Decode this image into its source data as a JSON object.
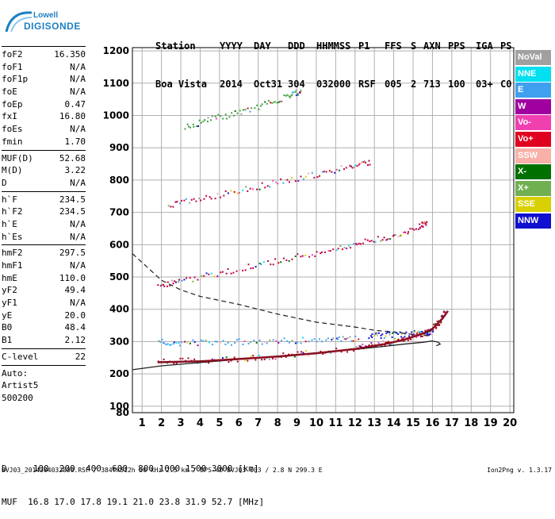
{
  "logo": {
    "brand": "Lowell",
    "product": "DIGISONDE"
  },
  "header": {
    "labels": [
      "Station",
      "YYYY",
      "DAY",
      "DDD",
      "HHMMSS",
      "P1",
      "FFS",
      "S",
      "AXN",
      "PPS",
      "IGA",
      "PS"
    ],
    "values": [
      "Boa Vista",
      "2014",
      "Oct31",
      "304",
      "032000",
      "RSF",
      "005",
      "2",
      "713",
      "100",
      "03+",
      "C0"
    ]
  },
  "params": {
    "group1": [
      {
        "label": "foF2",
        "value": "16.350"
      },
      {
        "label": "foF1",
        "value": "N/A"
      },
      {
        "label": "foF1p",
        "value": "N/A"
      },
      {
        "label": "foE",
        "value": "N/A"
      },
      {
        "label": "foEp",
        "value": "0.47"
      },
      {
        "label": "fxI",
        "value": "16.80"
      },
      {
        "label": "foEs",
        "value": "N/A"
      },
      {
        "label": "fmin",
        "value": "1.70"
      }
    ],
    "group2": [
      {
        "label": "MUF(D)",
        "value": "52.68"
      },
      {
        "label": "M(D)",
        "value": "3.22"
      },
      {
        "label": "D",
        "value": "N/A"
      }
    ],
    "group3": [
      {
        "label": "h`F",
        "value": "234.5"
      },
      {
        "label": "h`F2",
        "value": "234.5"
      },
      {
        "label": "h`E",
        "value": "N/A"
      },
      {
        "label": "h`Es",
        "value": "N/A"
      }
    ],
    "group4": [
      {
        "label": "hmF2",
        "value": "297.5"
      },
      {
        "label": "hmF1",
        "value": "N/A"
      },
      {
        "label": "hmE",
        "value": "110.0"
      },
      {
        "label": "yF2",
        "value": "49.4"
      },
      {
        "label": "yF1",
        "value": "N/A"
      },
      {
        "label": "yE",
        "value": "20.0"
      },
      {
        "label": "B0",
        "value": "48.4"
      },
      {
        "label": "B1",
        "value": "2.12"
      }
    ],
    "group5": [
      {
        "label": "C-level",
        "value": "22"
      }
    ],
    "scaling": [
      "Auto:",
      "Artist5",
      "500200"
    ]
  },
  "legend": [
    {
      "label": "NoVal",
      "color": "#a0a0a0"
    },
    {
      "label": "NNE",
      "color": "#00e0f0"
    },
    {
      "label": "E",
      "color": "#40a0f0"
    },
    {
      "label": "W",
      "color": "#a000a0"
    },
    {
      "label": "Vo-",
      "color": "#f040b0"
    },
    {
      "label": "Vo+",
      "color": "#e00020"
    },
    {
      "label": "SSW",
      "color": "#f8b0a8"
    },
    {
      "label": "X-",
      "color": "#007000"
    },
    {
      "label": "X+",
      "color": "#70b050"
    },
    {
      "label": "SSE",
      "color": "#d8d000"
    },
    {
      "label": "NNW",
      "color": "#1010d0"
    }
  ],
  "muf_table": {
    "d_row": "D     100  200  400  600  800 1000 1500 3000 [km]",
    "muf_row": "MUF  16.8 17.0 17.8 19.1 21.0 23.8 31.9 52.7 [MHz]"
  },
  "footer": {
    "left": "BVJ03_2014304032000.RSF / 384fx512h 50 kHz 2.5 km / DPS-4D BVJ03 003 / 2.8 N 299.3 E",
    "right": "Ion2Png v. 1.3.17"
  },
  "chart_data": {
    "type": "scatter",
    "xlim": [
      0.5,
      20.2
    ],
    "ylim": [
      80,
      1210
    ],
    "x_ticks": [
      1,
      2,
      3,
      4,
      5,
      6,
      7,
      8,
      9,
      10,
      11,
      12,
      13,
      14,
      15,
      16,
      17,
      18,
      19,
      20
    ],
    "y_ticks": [
      80,
      100,
      200,
      300,
      400,
      500,
      600,
      700,
      800,
      900,
      1000,
      1100,
      1200
    ],
    "grid": true,
    "legend_position": "right",
    "traces": [
      {
        "name": "O-trace (1st hop)",
        "color": "#b00020",
        "points": [
          [
            1.8,
            240
          ],
          [
            4,
            243
          ],
          [
            6,
            250
          ],
          [
            8,
            258
          ],
          [
            10,
            268
          ],
          [
            12,
            282
          ],
          [
            13,
            292
          ],
          [
            14,
            304
          ],
          [
            15,
            318
          ],
          [
            15.8,
            335
          ],
          [
            16.3,
            360
          ],
          [
            16.6,
            395
          ]
        ]
      },
      {
        "name": "E-component cluster",
        "color": "#40a0f0",
        "points": [
          [
            1.8,
            300
          ],
          [
            3,
            298
          ],
          [
            5,
            300
          ],
          [
            7,
            303
          ],
          [
            9,
            306
          ],
          [
            11,
            309
          ],
          [
            12.2,
            312
          ]
        ]
      },
      {
        "name": "NNW cluster",
        "color": "#1010d0",
        "points": [
          [
            12.7,
            318
          ],
          [
            13.5,
            322
          ],
          [
            14.5,
            325
          ],
          [
            15.5,
            328
          ],
          [
            16,
            330
          ]
        ]
      },
      {
        "name": "2nd hop",
        "color": "#c00040",
        "points": [
          [
            1.8,
            475
          ],
          [
            3,
            490
          ],
          [
            5,
            515
          ],
          [
            7,
            540
          ],
          [
            9,
            565
          ],
          [
            11,
            590
          ],
          [
            12.5,
            610
          ],
          [
            14,
            630
          ],
          [
            15.3,
            660
          ],
          [
            15.7,
            670
          ]
        ]
      },
      {
        "name": "3rd hop",
        "color": "#c00040",
        "points": [
          [
            2.3,
            725
          ],
          [
            4,
            745
          ],
          [
            6,
            770
          ],
          [
            8,
            795
          ],
          [
            10,
            820
          ],
          [
            11.8,
            845
          ],
          [
            12.8,
            860
          ]
        ]
      },
      {
        "name": "4th hop",
        "color": "#40a040",
        "points": [
          [
            3.2,
            965
          ],
          [
            4.5,
            990
          ],
          [
            6,
            1010
          ],
          [
            7.5,
            1040
          ],
          [
            8.7,
            1065
          ],
          [
            9.2,
            1080
          ]
        ]
      }
    ],
    "profile_line": {
      "points": [
        [
          0.5,
          213
        ],
        [
          2,
          225
        ],
        [
          4,
          235
        ],
        [
          6,
          245
        ],
        [
          8,
          255
        ],
        [
          10,
          265
        ],
        [
          12,
          276
        ],
        [
          13.5,
          285
        ],
        [
          14.5,
          292
        ],
        [
          15.5,
          298
        ],
        [
          16,
          302
        ],
        [
          16.3,
          298
        ],
        [
          16.4,
          292
        ],
        [
          16.2,
          287
        ]
      ]
    },
    "dashed_line": {
      "points": [
        [
          0.5,
          572
        ],
        [
          1,
          545
        ],
        [
          2,
          490
        ],
        [
          3,
          460
        ],
        [
          4,
          440
        ],
        [
          6,
          415
        ],
        [
          8,
          385
        ],
        [
          10,
          360
        ],
        [
          12,
          345
        ],
        [
          13,
          335
        ],
        [
          14,
          330
        ],
        [
          15,
          322
        ],
        [
          15.8,
          318
        ]
      ]
    },
    "model_curve": {
      "points": [
        [
          1.8,
          236
        ],
        [
          4,
          239
        ],
        [
          6,
          246
        ],
        [
          8,
          254
        ],
        [
          10,
          264
        ],
        [
          12,
          277
        ],
        [
          13.5,
          292
        ],
        [
          14.5,
          305
        ],
        [
          15.5,
          325
        ],
        [
          16,
          340
        ],
        [
          16.5,
          370
        ],
        [
          16.8,
          395
        ]
      ]
    }
  }
}
